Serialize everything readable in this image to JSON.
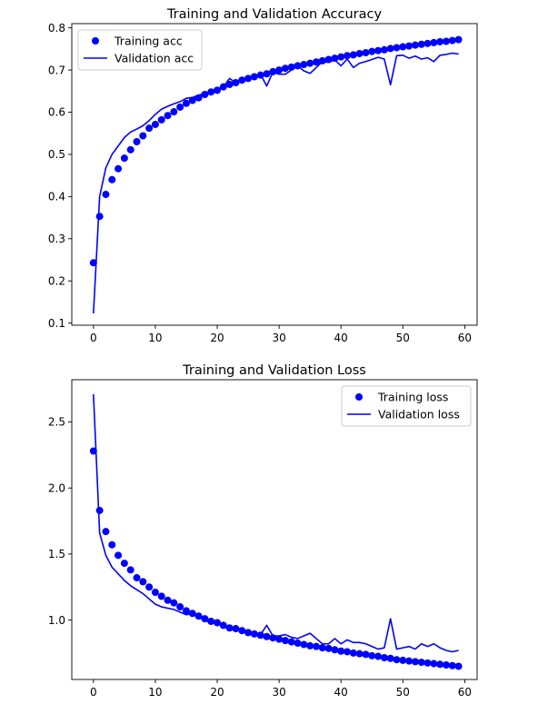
{
  "chart_data": [
    {
      "type": "line",
      "title": "Training and Validation Accuracy",
      "xlabel": "",
      "ylabel": "",
      "xlim": [
        -3.5,
        62
      ],
      "ylim": [
        0.095,
        0.81
      ],
      "xticks": [
        0,
        10,
        20,
        30,
        40,
        50,
        60
      ],
      "yticks": [
        0.1,
        0.2,
        0.3,
        0.4,
        0.5,
        0.6,
        0.7,
        0.8
      ],
      "grid": false,
      "legend": "top-left",
      "color": "#0000ff",
      "series": [
        {
          "name": "Training acc",
          "style": "markers",
          "x": [
            0,
            1,
            2,
            3,
            4,
            5,
            6,
            7,
            8,
            9,
            10,
            11,
            12,
            13,
            14,
            15,
            16,
            17,
            18,
            19,
            20,
            21,
            22,
            23,
            24,
            25,
            26,
            27,
            28,
            29,
            30,
            31,
            32,
            33,
            34,
            35,
            36,
            37,
            38,
            39,
            40,
            41,
            42,
            43,
            44,
            45,
            46,
            47,
            48,
            49,
            50,
            51,
            52,
            53,
            54,
            55,
            56,
            57,
            58,
            59
          ],
          "values": [
            0.243,
            0.353,
            0.405,
            0.44,
            0.466,
            0.491,
            0.511,
            0.53,
            0.544,
            0.562,
            0.571,
            0.582,
            0.592,
            0.601,
            0.612,
            0.621,
            0.628,
            0.634,
            0.642,
            0.648,
            0.652,
            0.66,
            0.666,
            0.67,
            0.676,
            0.68,
            0.684,
            0.688,
            0.691,
            0.696,
            0.7,
            0.704,
            0.707,
            0.71,
            0.713,
            0.716,
            0.719,
            0.722,
            0.725,
            0.728,
            0.731,
            0.734,
            0.736,
            0.739,
            0.741,
            0.744,
            0.746,
            0.748,
            0.751,
            0.753,
            0.755,
            0.757,
            0.759,
            0.761,
            0.763,
            0.765,
            0.767,
            0.768,
            0.77,
            0.772
          ]
        },
        {
          "name": "Validation acc",
          "style": "line",
          "x": [
            0,
            1,
            2,
            3,
            4,
            5,
            6,
            7,
            8,
            9,
            10,
            11,
            12,
            13,
            14,
            15,
            16,
            17,
            18,
            19,
            20,
            21,
            22,
            23,
            24,
            25,
            26,
            27,
            28,
            29,
            30,
            31,
            32,
            33,
            34,
            35,
            36,
            37,
            38,
            39,
            40,
            41,
            42,
            43,
            44,
            45,
            46,
            47,
            48,
            49,
            50,
            51,
            52,
            53,
            54,
            55,
            56,
            57,
            58,
            59
          ],
          "values": [
            0.123,
            0.4,
            0.468,
            0.5,
            0.52,
            0.54,
            0.553,
            0.56,
            0.568,
            0.58,
            0.595,
            0.607,
            0.614,
            0.62,
            0.625,
            0.633,
            0.635,
            0.64,
            0.645,
            0.648,
            0.655,
            0.66,
            0.68,
            0.67,
            0.675,
            0.685,
            0.683,
            0.69,
            0.662,
            0.695,
            0.69,
            0.69,
            0.7,
            0.71,
            0.698,
            0.692,
            0.706,
            0.72,
            0.718,
            0.724,
            0.71,
            0.726,
            0.706,
            0.716,
            0.72,
            0.725,
            0.73,
            0.726,
            0.665,
            0.734,
            0.735,
            0.728,
            0.733,
            0.726,
            0.729,
            0.72,
            0.735,
            0.737,
            0.74,
            0.738
          ]
        }
      ]
    },
    {
      "type": "line",
      "title": "Training and Validation Loss",
      "xlabel": "",
      "ylabel": "",
      "xlim": [
        -3.5,
        62
      ],
      "ylim": [
        0.55,
        2.82
      ],
      "xticks": [
        0,
        10,
        20,
        30,
        40,
        50,
        60
      ],
      "yticks": [
        1.0,
        1.5,
        2.0,
        2.5
      ],
      "ytick_labels": [
        "1.0",
        "1.5",
        "2.0",
        "2.5"
      ],
      "grid": false,
      "legend": "top-right",
      "color": "#0000ff",
      "series": [
        {
          "name": "Training loss",
          "style": "markers",
          "x": [
            0,
            1,
            2,
            3,
            4,
            5,
            6,
            7,
            8,
            9,
            10,
            11,
            12,
            13,
            14,
            15,
            16,
            17,
            18,
            19,
            20,
            21,
            22,
            23,
            24,
            25,
            26,
            27,
            28,
            29,
            30,
            31,
            32,
            33,
            34,
            35,
            36,
            37,
            38,
            39,
            40,
            41,
            42,
            43,
            44,
            45,
            46,
            47,
            48,
            49,
            50,
            51,
            52,
            53,
            54,
            55,
            56,
            57,
            58,
            59
          ],
          "values": [
            2.28,
            1.83,
            1.67,
            1.57,
            1.49,
            1.43,
            1.38,
            1.32,
            1.29,
            1.25,
            1.21,
            1.18,
            1.15,
            1.13,
            1.1,
            1.07,
            1.05,
            1.03,
            1.01,
            0.99,
            0.98,
            0.96,
            0.94,
            0.935,
            0.92,
            0.905,
            0.895,
            0.885,
            0.875,
            0.865,
            0.855,
            0.845,
            0.835,
            0.825,
            0.815,
            0.805,
            0.8,
            0.79,
            0.785,
            0.775,
            0.765,
            0.76,
            0.75,
            0.745,
            0.74,
            0.73,
            0.725,
            0.715,
            0.71,
            0.7,
            0.695,
            0.69,
            0.685,
            0.68,
            0.675,
            0.67,
            0.665,
            0.66,
            0.655,
            0.65
          ]
        },
        {
          "name": "Validation loss",
          "style": "line",
          "x": [
            0,
            1,
            2,
            3,
            4,
            5,
            6,
            7,
            8,
            9,
            10,
            11,
            12,
            13,
            14,
            15,
            16,
            17,
            18,
            19,
            20,
            21,
            22,
            23,
            24,
            25,
            26,
            27,
            28,
            29,
            30,
            31,
            32,
            33,
            34,
            35,
            36,
            37,
            38,
            39,
            40,
            41,
            42,
            43,
            44,
            45,
            46,
            47,
            48,
            49,
            50,
            51,
            52,
            53,
            54,
            55,
            56,
            57,
            58,
            59
          ],
          "values": [
            2.71,
            1.66,
            1.49,
            1.4,
            1.35,
            1.3,
            1.26,
            1.23,
            1.2,
            1.16,
            1.12,
            1.1,
            1.09,
            1.08,
            1.06,
            1.04,
            1.05,
            1.02,
            1.0,
            0.98,
            0.975,
            0.96,
            0.92,
            0.94,
            0.92,
            0.9,
            0.91,
            0.89,
            0.96,
            0.88,
            0.88,
            0.89,
            0.87,
            0.86,
            0.88,
            0.9,
            0.86,
            0.82,
            0.82,
            0.86,
            0.82,
            0.85,
            0.83,
            0.83,
            0.82,
            0.8,
            0.78,
            0.79,
            1.01,
            0.78,
            0.79,
            0.8,
            0.78,
            0.82,
            0.8,
            0.82,
            0.79,
            0.77,
            0.76,
            0.77
          ]
        }
      ]
    }
  ]
}
